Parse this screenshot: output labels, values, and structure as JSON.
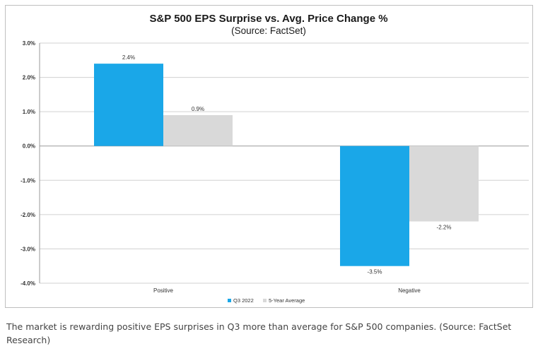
{
  "chart_data": {
    "type": "bar",
    "title": "S&P 500 EPS Surprise vs. Avg. Price Change %",
    "subtitle": "(Source: FactSet)",
    "categories": [
      "Positive",
      "Negative"
    ],
    "series": [
      {
        "name": "Q3 2022",
        "values": [
          2.4,
          -3.5
        ],
        "labels": [
          "2.4%",
          "-3.5%"
        ],
        "color": "#1aa7e8"
      },
      {
        "name": "5-Year Average",
        "values": [
          0.9,
          -2.2
        ],
        "labels": [
          "0.9%",
          "-2.2%"
        ],
        "color": "#d9d9d9"
      }
    ],
    "ylim": [
      -4.0,
      3.0
    ],
    "yticks": [
      3.0,
      2.0,
      1.0,
      0.0,
      -1.0,
      -2.0,
      -3.0,
      -4.0
    ],
    "ytick_labels": [
      "3.0%",
      "2.0%",
      "1.0%",
      "0.0%",
      "-1.0%",
      "-2.0%",
      "-3.0%",
      "-4.0%"
    ],
    "xlabel": "",
    "ylabel": "",
    "legend_position": "bottom",
    "gridlines": true
  },
  "caption": "The market is rewarding positive EPS surprises in Q3 more than average for S&P 500 companies. (Source: FactSet Research)"
}
